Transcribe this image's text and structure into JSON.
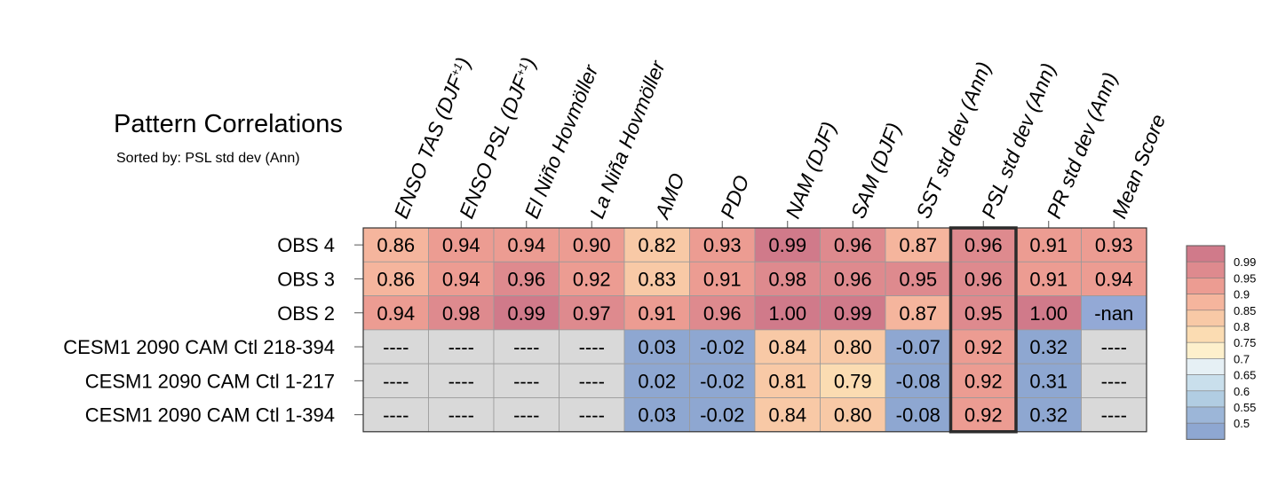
{
  "chart_data": {
    "type": "heatmap",
    "title": "Pattern Correlations",
    "subtitle": "Sorted by: PSL std dev (Ann)",
    "columns": [
      {
        "main": "ENSO TAS (DJF",
        "sup": "+1",
        "tail": ")"
      },
      {
        "main": "ENSO PSL (DJF",
        "sup": "+1",
        "tail": ")"
      },
      {
        "main": "El Niño Hovmöller",
        "sup": "",
        "tail": ""
      },
      {
        "main": "La Niña Hovmöller",
        "sup": "",
        "tail": ""
      },
      {
        "main": "AMO",
        "sup": "",
        "tail": ""
      },
      {
        "main": "PDO",
        "sup": "",
        "tail": ""
      },
      {
        "main": "NAM (DJF)",
        "sup": "",
        "tail": ""
      },
      {
        "main": "SAM (DJF)",
        "sup": "",
        "tail": ""
      },
      {
        "main": "SST std dev (Ann)",
        "sup": "",
        "tail": ""
      },
      {
        "main": "PSL std dev (Ann)",
        "sup": "",
        "tail": ""
      },
      {
        "main": "PR std dev (Ann)",
        "sup": "",
        "tail": ""
      },
      {
        "main": "Mean Score",
        "sup": "",
        "tail": ""
      }
    ],
    "rows": [
      "OBS 4",
      "OBS 3",
      "OBS 2",
      "CESM1 2090 CAM Ctl 218-394",
      "CESM1 2090 CAM Ctl 1-217",
      "CESM1 2090 CAM Ctl 1-394"
    ],
    "cells": [
      [
        "0.86",
        "0.94",
        "0.94",
        "0.90",
        "0.82",
        "0.93",
        "0.99",
        "0.96",
        "0.87",
        "0.96",
        "0.91",
        "0.93"
      ],
      [
        "0.86",
        "0.94",
        "0.96",
        "0.92",
        "0.83",
        "0.91",
        "0.98",
        "0.96",
        "0.95",
        "0.96",
        "0.91",
        "0.94"
      ],
      [
        "0.94",
        "0.98",
        "0.99",
        "0.97",
        "0.91",
        "0.96",
        "1.00",
        "0.99",
        "0.87",
        "0.95",
        "1.00",
        "-nan"
      ],
      [
        "----",
        "----",
        "----",
        "----",
        "0.03",
        "-0.02",
        "0.84",
        "0.80",
        "-0.07",
        "0.92",
        "0.32",
        "----"
      ],
      [
        "----",
        "----",
        "----",
        "----",
        "0.02",
        "-0.02",
        "0.81",
        "0.79",
        "-0.08",
        "0.92",
        "0.31",
        "----"
      ],
      [
        "----",
        "----",
        "----",
        "----",
        "0.03",
        "-0.02",
        "0.84",
        "0.80",
        "-0.08",
        "0.92",
        "0.32",
        "----"
      ]
    ],
    "highlighted_column": "PSL std dev (Ann)",
    "colorbar": {
      "labels": [
        "0.99",
        "0.95",
        "0.9",
        "0.85",
        "0.8",
        "0.75",
        "0.7",
        "0.65",
        "0.6",
        "0.55",
        "0.5"
      ],
      "colors": [
        "#d07a8a",
        "#de8a8e",
        "#ec9c92",
        "#f5b59d",
        "#f8c9a6",
        "#fbdcb2",
        "#fdf0cc",
        "#e6f0f5",
        "#c9dfec",
        "#b1cde2",
        "#9cb6d8",
        "#8ea7d1"
      ]
    },
    "missing_color": "#d9d9d9",
    "nan_color": "#93a9d6"
  }
}
